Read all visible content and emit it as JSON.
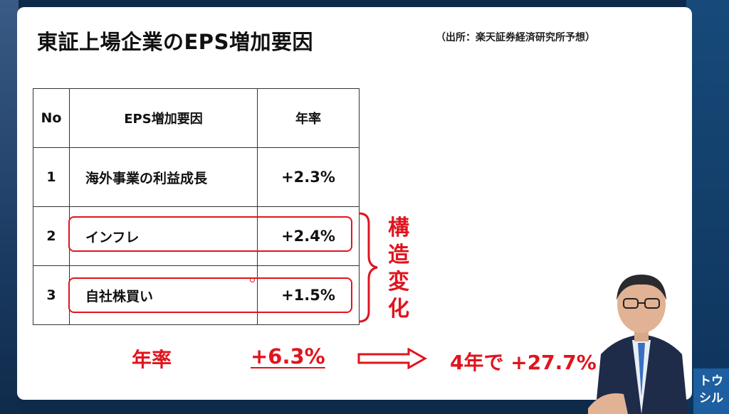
{
  "slide": {
    "title": "東証上場企業のEPS増加要因",
    "source": "（出所：楽天証券経済研究所予想）"
  },
  "table": {
    "headers": {
      "no": "No",
      "factor": "EPS増加要因",
      "rate": "年率"
    },
    "rows": [
      {
        "no": "1",
        "factor": "海外事業の利益成長",
        "rate": "+2.3%"
      },
      {
        "no": "2",
        "factor": "インフレ",
        "rate": "+2.4%"
      },
      {
        "no": "3",
        "factor": "自社株買い",
        "rate": "+1.5%"
      }
    ]
  },
  "annotation": {
    "structural_label": "構造変化",
    "annual_label": "年率",
    "annual_total": "+6.3%",
    "four_year_result": "4年で  +27.7%"
  },
  "logo": {
    "text": "トウシル"
  },
  "colors": {
    "accent_red": "#e0141e",
    "slide_bg": "#ffffff",
    "frame_bg": "#0d2a4a",
    "logo_blue": "#1d5fa0"
  }
}
